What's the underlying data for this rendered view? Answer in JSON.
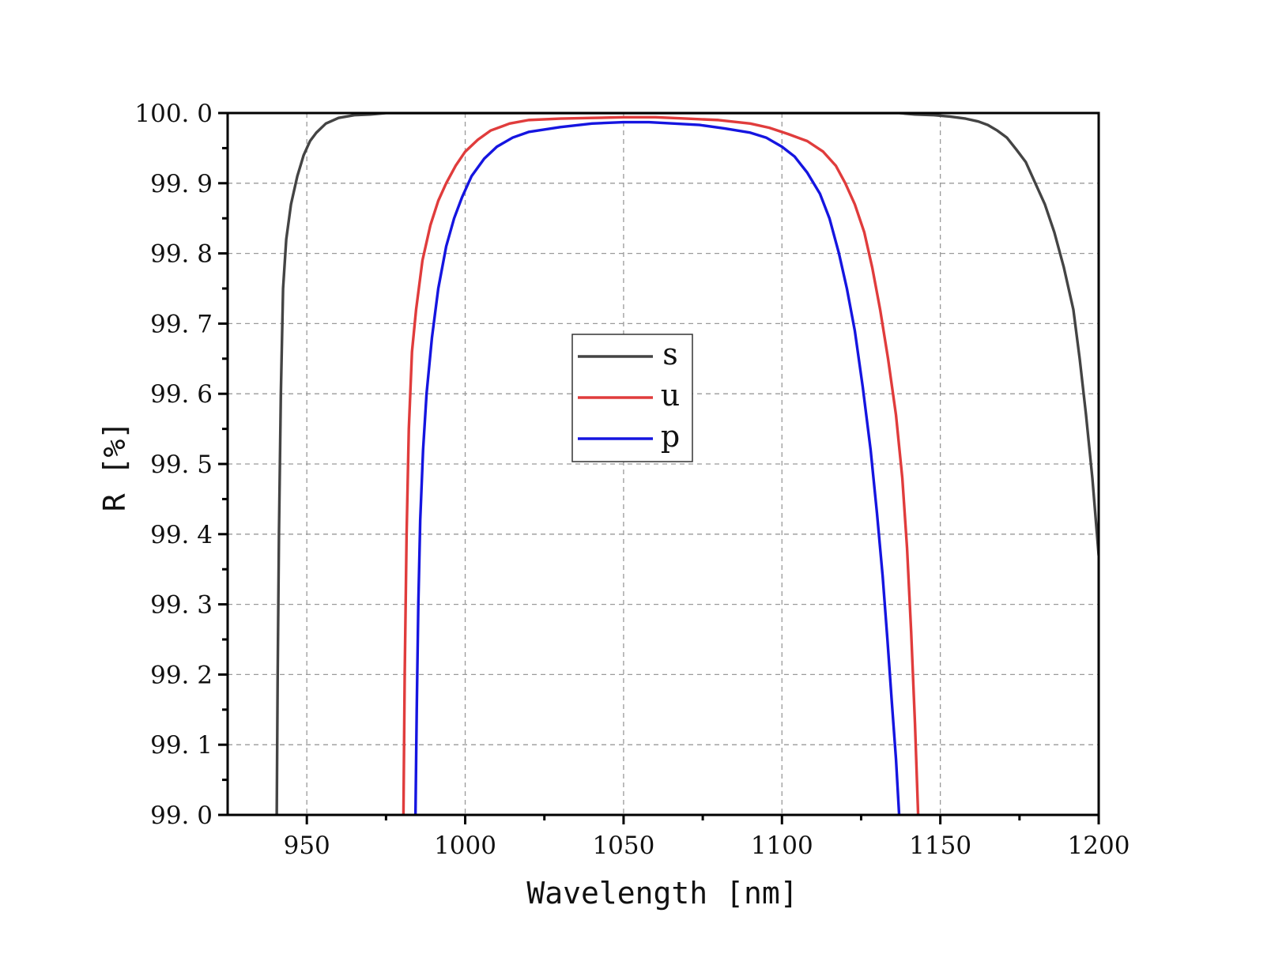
{
  "chart_data": {
    "type": "line",
    "xlabel": "Wavelength [nm]",
    "ylabel": "R [%]",
    "xlim": [
      925,
      1200
    ],
    "ylim": [
      99.0,
      100.0
    ],
    "x_ticks": [
      950,
      1000,
      1050,
      1100,
      1150,
      1200
    ],
    "x_tick_labels": [
      "950",
      "1000",
      "1050",
      "1100",
      "1150",
      "1200"
    ],
    "y_ticks": [
      99.0,
      99.1,
      99.2,
      99.3,
      99.4,
      99.5,
      99.6,
      99.7,
      99.8,
      99.9,
      100.0
    ],
    "y_tick_labels": [
      "99. 0",
      "99. 1",
      "99. 2",
      "99. 3",
      "99. 4",
      "99. 5",
      "99. 6",
      "99. 7",
      "99. 8",
      "99. 9",
      "100. 0"
    ],
    "grid": true,
    "legend_position": "center",
    "series": [
      {
        "name": "s",
        "color": "#444444",
        "points": [
          [
            940.5,
            99.0
          ],
          [
            940.8,
            99.2
          ],
          [
            941.2,
            99.4
          ],
          [
            941.8,
            99.6
          ],
          [
            942.5,
            99.75
          ],
          [
            943.5,
            99.82
          ],
          [
            945,
            99.87
          ],
          [
            947,
            99.91
          ],
          [
            949,
            99.94
          ],
          [
            951,
            99.96
          ],
          [
            953,
            99.972
          ],
          [
            956,
            99.985
          ],
          [
            960,
            99.993
          ],
          [
            965,
            99.997
          ],
          [
            970,
            99.998
          ],
          [
            975,
            100.0
          ],
          [
            1000,
            100.0
          ],
          [
            1050,
            100.0
          ],
          [
            1100,
            100.0
          ],
          [
            1137,
            100.0
          ],
          [
            1142,
            99.998
          ],
          [
            1148,
            99.997
          ],
          [
            1153,
            99.995
          ],
          [
            1158,
            99.992
          ],
          [
            1162,
            99.988
          ],
          [
            1165,
            99.983
          ],
          [
            1168,
            99.975
          ],
          [
            1171,
            99.965
          ],
          [
            1174,
            99.948
          ],
          [
            1177,
            99.93
          ],
          [
            1180,
            99.9
          ],
          [
            1183,
            99.87
          ],
          [
            1186,
            99.83
          ],
          [
            1189,
            99.78
          ],
          [
            1192,
            99.72
          ],
          [
            1194,
            99.65
          ],
          [
            1196,
            99.57
          ],
          [
            1198,
            99.48
          ],
          [
            1200,
            99.37
          ]
        ]
      },
      {
        "name": "u",
        "color": "#e03c3c",
        "points": [
          [
            980.5,
            99.0
          ],
          [
            980.9,
            99.2
          ],
          [
            981.5,
            99.4
          ],
          [
            982.2,
            99.55
          ],
          [
            983.2,
            99.66
          ],
          [
            984.5,
            99.72
          ],
          [
            986.5,
            99.79
          ],
          [
            989,
            99.84
          ],
          [
            991.5,
            99.875
          ],
          [
            994,
            99.9
          ],
          [
            997,
            99.925
          ],
          [
            1000,
            99.945
          ],
          [
            1004,
            99.962
          ],
          [
            1008,
            99.975
          ],
          [
            1014,
            99.985
          ],
          [
            1020,
            99.99
          ],
          [
            1030,
            99.992
          ],
          [
            1040,
            99.993
          ],
          [
            1050,
            99.994
          ],
          [
            1060,
            99.994
          ],
          [
            1070,
            99.992
          ],
          [
            1080,
            99.99
          ],
          [
            1090,
            99.985
          ],
          [
            1096,
            99.979
          ],
          [
            1102,
            99.97
          ],
          [
            1108,
            99.96
          ],
          [
            1113,
            99.945
          ],
          [
            1117,
            99.925
          ],
          [
            1120,
            99.9
          ],
          [
            1123,
            99.87
          ],
          [
            1126,
            99.83
          ],
          [
            1128.5,
            99.78
          ],
          [
            1131,
            99.72
          ],
          [
            1133.5,
            99.65
          ],
          [
            1136,
            99.57
          ],
          [
            1138,
            99.48
          ],
          [
            1139.5,
            99.38
          ],
          [
            1140.8,
            99.26
          ],
          [
            1142,
            99.13
          ],
          [
            1143,
            99.0
          ]
        ]
      },
      {
        "name": "p",
        "color": "#1515e0",
        "points": [
          [
            984.3,
            99.0
          ],
          [
            984.7,
            99.15
          ],
          [
            985.2,
            99.3
          ],
          [
            985.8,
            99.42
          ],
          [
            986.7,
            99.52
          ],
          [
            987.8,
            99.6
          ],
          [
            989.5,
            99.68
          ],
          [
            991.5,
            99.75
          ],
          [
            994,
            99.81
          ],
          [
            996.5,
            99.85
          ],
          [
            999,
            99.88
          ],
          [
            1002,
            99.91
          ],
          [
            1006,
            99.935
          ],
          [
            1010,
            99.952
          ],
          [
            1015,
            99.965
          ],
          [
            1020,
            99.973
          ],
          [
            1030,
            99.98
          ],
          [
            1040,
            99.985
          ],
          [
            1050,
            99.987
          ],
          [
            1058,
            99.987
          ],
          [
            1066,
            99.985
          ],
          [
            1074,
            99.983
          ],
          [
            1082,
            99.978
          ],
          [
            1090,
            99.972
          ],
          [
            1095,
            99.965
          ],
          [
            1100,
            99.952
          ],
          [
            1104,
            99.938
          ],
          [
            1108,
            99.915
          ],
          [
            1112,
            99.885
          ],
          [
            1115,
            99.85
          ],
          [
            1118,
            99.8
          ],
          [
            1120.5,
            99.75
          ],
          [
            1123,
            99.69
          ],
          [
            1125.5,
            99.61
          ],
          [
            1128,
            99.52
          ],
          [
            1130,
            99.43
          ],
          [
            1131.8,
            99.34
          ],
          [
            1133.3,
            99.25
          ],
          [
            1134.7,
            99.16
          ],
          [
            1136,
            99.08
          ],
          [
            1137,
            99.0
          ]
        ]
      }
    ]
  }
}
